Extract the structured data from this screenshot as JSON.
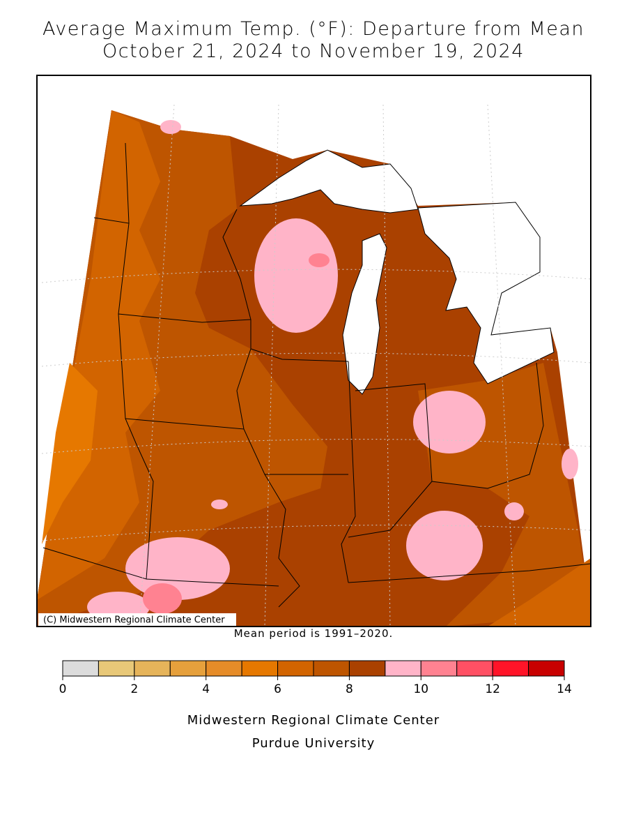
{
  "title": "Average Maximum Temp. (°F): Departure from Mean",
  "subtitle": "October 21, 2024 to November 19, 2024",
  "copyright": "(C) Midwestern Regional Climate Center",
  "note": "Mean period is 1991–2020.",
  "legend": {
    "bins": [
      0,
      1,
      2,
      3,
      4,
      5,
      6,
      7,
      8,
      9,
      10,
      11,
      12,
      13,
      14
    ],
    "colors": [
      "#dcdcdc",
      "#e8c878",
      "#e6b45a",
      "#e6a03c",
      "#e68c28",
      "#e67800",
      "#d26400",
      "#be5500",
      "#aa4100",
      "#ffb4c8",
      "#ff8291",
      "#ff5064",
      "#ff1428",
      "#c80000"
    ],
    "ticks": [
      0,
      2,
      4,
      6,
      8,
      10,
      12,
      14
    ]
  },
  "footer": [
    "Midwestern Regional Climate Center",
    "Purdue University"
  ]
}
